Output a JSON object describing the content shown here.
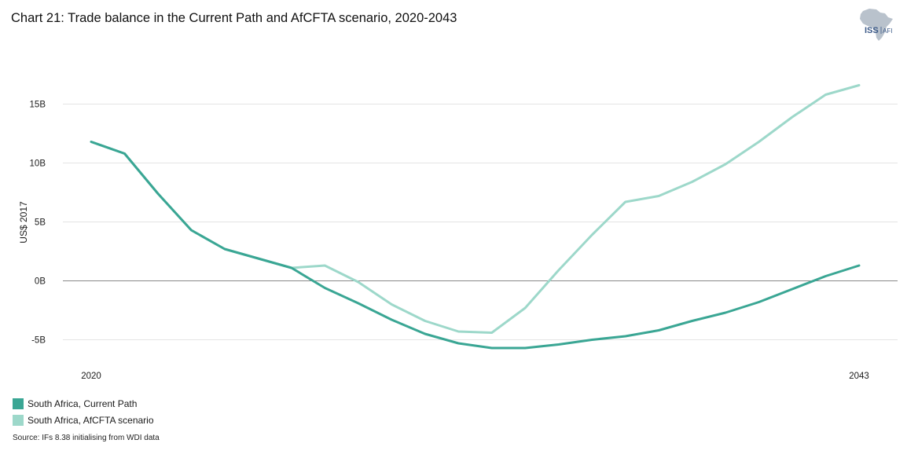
{
  "colors": {
    "current_path": "#3aa694",
    "afcfta": "#9dd8ca",
    "grid": "#e4e4e4",
    "zero_line": "#888888"
  },
  "logo": {
    "text_main": "ISS",
    "text_sub": "AFI",
    "icon": "africa-map-icon"
  },
  "chart_data": {
    "type": "line",
    "title": "Chart 21: Trade balance in the Current Path and AfCFTA scenario, 2020-2043",
    "ylabel": "US$ 2017",
    "ylim": [
      -7000000000,
      18000000000
    ],
    "xlim": [
      2020,
      2043
    ],
    "yticks": [
      {
        "value": 15000000000,
        "label": "15B"
      },
      {
        "value": 10000000000,
        "label": "10B"
      },
      {
        "value": 5000000000,
        "label": "5B"
      },
      {
        "value": 0,
        "label": "0B"
      },
      {
        "value": -5000000000,
        "label": "-5B"
      }
    ],
    "xticks": [
      {
        "value": 2020,
        "label": "2020"
      },
      {
        "value": 2043,
        "label": "2043"
      }
    ],
    "grid": true,
    "legend_position": "bottom-left",
    "x": [
      2020,
      2021,
      2022,
      2023,
      2024,
      2025,
      2026,
      2027,
      2028,
      2029,
      2030,
      2031,
      2032,
      2033,
      2034,
      2035,
      2036,
      2037,
      2038,
      2039,
      2040,
      2041,
      2042,
      2043
    ],
    "series": [
      {
        "name": "South Africa, Current Path",
        "color": "#3aa694",
        "values": [
          11800000000.0,
          10800000000.0,
          7400000000.0,
          4300000000.0,
          2700000000.0,
          1900000000.0,
          1100000000.0,
          -600000000.0,
          -1900000000.0,
          -3300000000.0,
          -4500000000.0,
          -5300000000.0,
          -5700000000.0,
          -5700000000.0,
          -5400000000.0,
          -5000000000.0,
          -4700000000.0,
          -4200000000.0,
          -3400000000.0,
          -2700000000.0,
          -1800000000.0,
          -700000000.0,
          400000000.0,
          1300000000.0
        ]
      },
      {
        "name": "South Africa, AfCFTA scenario",
        "color": "#9dd8ca",
        "values": [
          11800000000.0,
          10800000000.0,
          7400000000.0,
          4300000000.0,
          2700000000.0,
          1900000000.0,
          1100000000.0,
          1300000000.0,
          -100000000.0,
          -2000000000.0,
          -3400000000.0,
          -4300000000.0,
          -4400000000.0,
          -2300000000.0,
          900000000.0,
          3900000000.0,
          6700000000.0,
          7200000000.0,
          8400000000.0,
          9900000000.0,
          11800000000.0,
          13900000000.0,
          15800000000.0,
          16600000000.0
        ]
      }
    ]
  },
  "source": "Source: IFs 8.38 initialising from WDI data"
}
